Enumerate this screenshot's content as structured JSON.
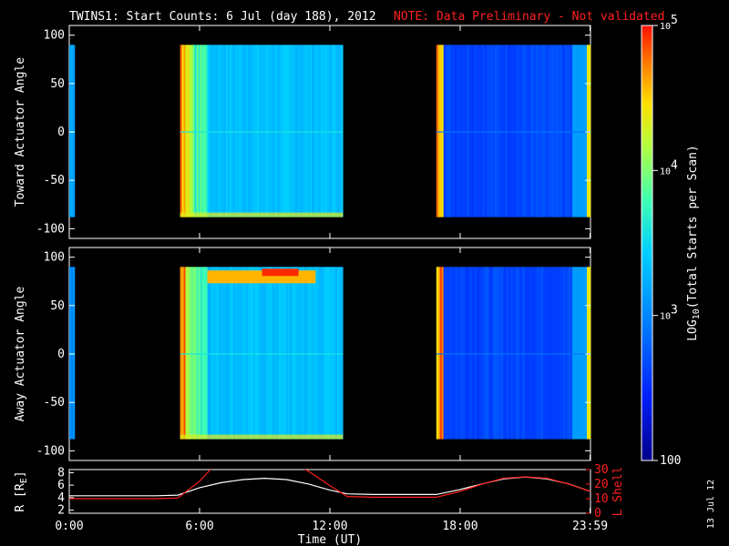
{
  "header": {
    "title": "TWINS1: Start Counts:  6 Jul (day 188), 2012",
    "note": "NOTE: Data Preliminary - Not validated"
  },
  "colors": {
    "background": "#000000",
    "foreground": "#ffffff",
    "note": "#ff2020",
    "lshell_line": "#ff2020",
    "r_line": "#ffffff"
  },
  "chart_data": [
    {
      "type": "heatmap",
      "name": "toward-panel",
      "ylabel": "Toward Actuator Angle",
      "ylim": [
        -110,
        110
      ],
      "yticks": [
        100,
        50,
        0,
        -50,
        -100
      ],
      "xlim": [
        0,
        24
      ],
      "data_blocks": [
        {
          "t_start": 0.0,
          "t_end": 0.25,
          "level": 0.4
        },
        {
          "t_start": 5.1,
          "t_end": 12.6,
          "level": 0.45
        },
        {
          "t_start": 16.9,
          "t_end": 24.0,
          "level": 0.22
        }
      ],
      "angle_range": [
        -88,
        90
      ]
    },
    {
      "type": "heatmap",
      "name": "away-panel",
      "ylabel": "Away Actuator Angle",
      "ylim": [
        -110,
        110
      ],
      "yticks": [
        100,
        50,
        0,
        -50,
        -100
      ],
      "xlim": [
        0,
        24
      ],
      "data_blocks": [
        {
          "t_start": 0.0,
          "t_end": 0.25,
          "level": 0.35
        },
        {
          "t_start": 5.1,
          "t_end": 12.6,
          "level": 0.45
        },
        {
          "t_start": 16.9,
          "t_end": 24.0,
          "level": 0.22
        }
      ],
      "angle_range": [
        -88,
        90
      ]
    },
    {
      "type": "line",
      "name": "ephemeris-panel",
      "ylabel": "R [R",
      "ylabel_sub": "E",
      "ylabel_end": "]",
      "ylabel_right": "L Shell",
      "ylim": [
        1.5,
        8.5
      ],
      "yticks": [
        2,
        4,
        6,
        8
      ],
      "ylim_right": [
        0,
        30
      ],
      "yticks_right": [
        0,
        10,
        20,
        30
      ],
      "xlabel": "Time (UT)",
      "xlim": [
        0,
        24
      ],
      "xticks": [
        {
          "t": 0,
          "label": "0:00"
        },
        {
          "t": 6,
          "label": "6:00"
        },
        {
          "t": 12,
          "label": "12:00"
        },
        {
          "t": 18,
          "label": "18:00"
        },
        {
          "t": 23.98,
          "label": "23:59"
        }
      ],
      "series": [
        {
          "name": "R",
          "x": [
            0,
            2,
            4,
            5,
            6,
            7,
            8,
            9,
            10,
            11,
            12,
            12.8,
            14,
            16,
            16.9,
            18,
            19,
            20,
            21,
            22,
            23,
            24
          ],
          "y": [
            4.3,
            4.3,
            4.3,
            4.4,
            5.6,
            6.4,
            6.9,
            7.1,
            6.9,
            6.2,
            5.2,
            4.6,
            4.5,
            4.5,
            4.5,
            5.3,
            6.2,
            7.0,
            7.3,
            7.0,
            6.2,
            5.0
          ]
        },
        {
          "name": "L Shell",
          "x": [
            0,
            2,
            4,
            5,
            6,
            6.5,
            7.2,
            10.2,
            11,
            12,
            12.8,
            14,
            16,
            16.9,
            18,
            19,
            20,
            21,
            22,
            23,
            24
          ],
          "y": [
            10,
            10,
            10,
            10.5,
            22,
            30,
            35,
            35,
            29,
            19,
            11.5,
            11,
            11,
            11,
            15,
            20,
            24,
            25,
            24,
            20,
            15
          ]
        }
      ]
    }
  ],
  "colorbar": {
    "label_prefix": "LOG",
    "label_sub": "10",
    "label_suffix": "(Total Starts per Scan)",
    "ticks": [
      {
        "value": 100,
        "base": "100",
        "exp": ""
      },
      {
        "value": 1000,
        "base": "10",
        "exp": "3"
      },
      {
        "value": 10000,
        "base": "10",
        "exp": "4"
      },
      {
        "value": 100000,
        "base": "10",
        "exp": "5"
      }
    ],
    "range": [
      100,
      100000
    ]
  },
  "footer": {
    "date_stamp": "13 Jul 12"
  }
}
